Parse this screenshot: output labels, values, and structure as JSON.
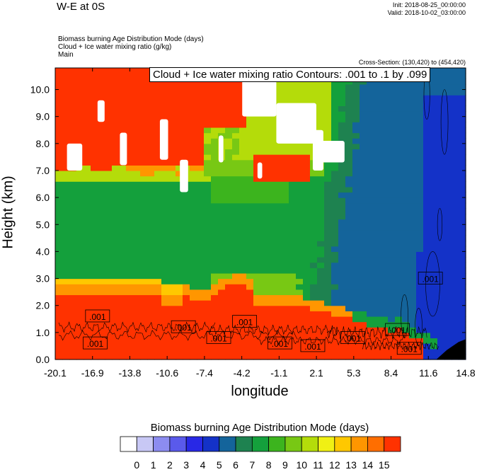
{
  "header": {
    "title": "W-E at 0S",
    "init": "Init: 2018-08-25_00:00:00",
    "valid": "Valid: 2018-10-02_03:00:00",
    "field_line1": "Biomass burning Age Distribution Mode   (days)",
    "field_line2": "Cloud + Ice water mixing ratio   (g/kg)",
    "field_line3": "Main",
    "cross_section": "Cross-Section: (130,420) to (454,420)",
    "contour_info": "Cloud + Ice water mixing ratio Contours: .001 to .1 by .099"
  },
  "chart_data": {
    "type": "heatmap",
    "xlabel": "longitude",
    "ylabel": "Height (km)",
    "xlim": [
      -20.1,
      14.8
    ],
    "ylim": [
      0,
      10.8
    ],
    "x_ticks": [
      "-20.1",
      "-16.9",
      "-13.8",
      "-10.6",
      "-7.4",
      "-4.2",
      "-1.1",
      "2.1",
      "5.3",
      "8.4",
      "11.6",
      "14.8"
    ],
    "y_ticks": [
      "0.0",
      "1.0",
      "2.0",
      "3.0",
      "4.0",
      "5.0",
      "6.0",
      "7.0",
      "8.0",
      "9.0",
      "10.0"
    ],
    "colorbar": {
      "title": "Biomass burning Age Distribution Mode  (days)",
      "labels": [
        "0",
        "1",
        "2",
        "3",
        "4",
        "5",
        "6",
        "7",
        "8",
        "9",
        "10",
        "11",
        "12",
        "13",
        "14",
        "15"
      ],
      "colors": [
        "#ffffff",
        "#c8c8f5",
        "#8c8cf0",
        "#5a5aeb",
        "#2828e6",
        "#1432c8",
        "#14649b",
        "#1e8250",
        "#14a03c",
        "#3cb41e",
        "#78c814",
        "#b4dc0a",
        "#f0f014",
        "#ffc800",
        "#ff9600",
        "#ff6e00",
        "#ff3200"
      ]
    },
    "regions": [
      {
        "name": "upper-west",
        "x": [
          -20.1,
          -7.5
        ],
        "y": [
          7.0,
          10.8
        ],
        "age": 15
      },
      {
        "name": "upper-west-high",
        "x": [
          -7.5,
          -3.5
        ],
        "y": [
          8.5,
          10.8
        ],
        "age": 15
      },
      {
        "name": "west-mid",
        "x": [
          -20.1,
          -7.0
        ],
        "y": [
          3.5,
          7.0
        ],
        "age": 7
      },
      {
        "name": "boundary-layer",
        "x": [
          -20.1,
          10.5
        ],
        "y": [
          0.0,
          2.2
        ],
        "age": 15
      },
      {
        "name": "lower-mid-west",
        "x": [
          -20.1,
          -10.0
        ],
        "y": [
          2.0,
          3.5
        ],
        "age": 13
      },
      {
        "name": "central-mid",
        "x": [
          -10.0,
          2.0
        ],
        "y": [
          2.2,
          7.5
        ],
        "age": 8
      },
      {
        "name": "central-upper",
        "x": [
          -4.5,
          5.0
        ],
        "y": [
          6.5,
          10.8
        ],
        "age": 10
      },
      {
        "name": "east-mid",
        "x": [
          2.0,
          14.8
        ],
        "y": [
          0.8,
          10.8
        ],
        "age": 5
      },
      {
        "name": "east-far",
        "x": [
          11.0,
          14.8
        ],
        "y": [
          0.5,
          10.8
        ],
        "age": 4
      }
    ],
    "contour_labels": [
      {
        "text": ".001",
        "x": -16.5,
        "y": 1.6
      },
      {
        "text": ".001",
        "x": -9.2,
        "y": 1.2
      },
      {
        "text": ".001",
        "x": -4.0,
        "y": 1.4
      },
      {
        "text": ".001",
        "x": -16.7,
        "y": 0.6
      },
      {
        "text": ".001",
        "x": -6.2,
        "y": 0.8
      },
      {
        "text": ".001",
        "x": -1.0,
        "y": 0.6
      },
      {
        "text": ".001",
        "x": 1.8,
        "y": 0.5
      },
      {
        "text": ".001",
        "x": 5.2,
        "y": 0.8
      },
      {
        "text": ".001",
        "x": 9.0,
        "y": 1.1
      },
      {
        "text": ".001",
        "x": 11.8,
        "y": 3.0
      },
      {
        "text": ".001",
        "x": 10.0,
        "y": 0.4
      }
    ]
  }
}
